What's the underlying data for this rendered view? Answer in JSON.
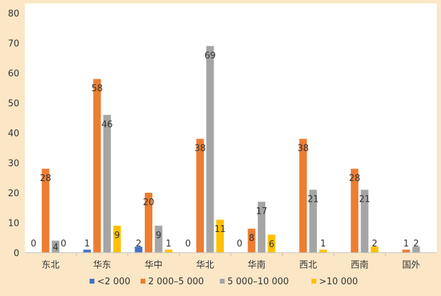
{
  "chart_data": {
    "type": "bar",
    "categories": [
      "东北",
      "华东",
      "华中",
      "华北",
      "华南",
      "西北",
      "西南",
      "国外"
    ],
    "series": [
      {
        "name": "<2 000",
        "color": "#4472c4",
        "values": [
          0,
          1,
          2,
          0,
          0,
          0,
          0,
          0
        ],
        "labels": [
          "0",
          "1",
          "2",
          "0",
          "0",
          "",
          "",
          ""
        ]
      },
      {
        "name": "2 000–5 000",
        "color": "#ed7d31",
        "values": [
          28,
          58,
          20,
          38,
          8,
          38,
          28,
          1
        ],
        "labels": [
          "28",
          "58",
          "20",
          "38",
          "8",
          "38",
          "28",
          "1"
        ]
      },
      {
        "name": "5 000–10 000",
        "color": "#a5a5a5",
        "values": [
          4,
          46,
          9,
          69,
          17,
          21,
          21,
          2
        ],
        "labels": [
          "4",
          "46",
          "9",
          "69",
          "17",
          "21",
          "21",
          "2"
        ]
      },
      {
        "name": ">10 000",
        "color": "#ffc000",
        "values": [
          0,
          9,
          1,
          11,
          6,
          1,
          2,
          0
        ],
        "labels": [
          "0",
          "9",
          "1",
          "11",
          "6",
          "1",
          "2",
          ""
        ]
      }
    ],
    "yticks": [
      "0",
      "10",
      "20",
      "30",
      "40",
      "50",
      "60",
      "70",
      "80"
    ],
    "ylim": [
      0,
      80
    ],
    "grid": false,
    "legend": "bottom"
  }
}
